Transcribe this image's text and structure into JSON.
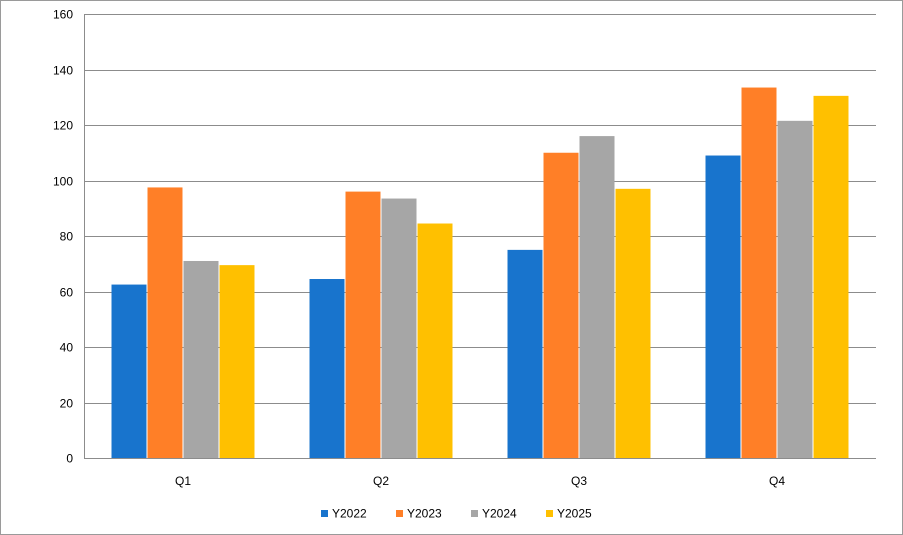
{
  "chart_data": {
    "type": "bar",
    "categories": [
      "Q1",
      "Q2",
      "Q3",
      "Q4"
    ],
    "series": [
      {
        "name": "Y2022",
        "color": "#1874CD",
        "values": [
          62.5,
          64.5,
          75,
          109
        ]
      },
      {
        "name": "Y2023",
        "color": "#FF7F27",
        "values": [
          97.5,
          96,
          110,
          133.5
        ]
      },
      {
        "name": "Y2024",
        "color": "#A6A6A6",
        "values": [
          71,
          93.5,
          116,
          121.5
        ]
      },
      {
        "name": "Y2025",
        "color": "#FFC000",
        "values": [
          69.5,
          84.5,
          97,
          130.5
        ]
      }
    ],
    "title": "",
    "xlabel": "",
    "ylabel": "",
    "ylim": [
      0,
      160
    ],
    "yticks": [
      0,
      20,
      40,
      60,
      80,
      100,
      120,
      140,
      160
    ],
    "ytick_labels": [
      "0",
      "20",
      "40",
      "60",
      "80",
      "100",
      "120",
      "140",
      "160"
    ],
    "grid": "horizontal",
    "legend_position": "bottom"
  }
}
